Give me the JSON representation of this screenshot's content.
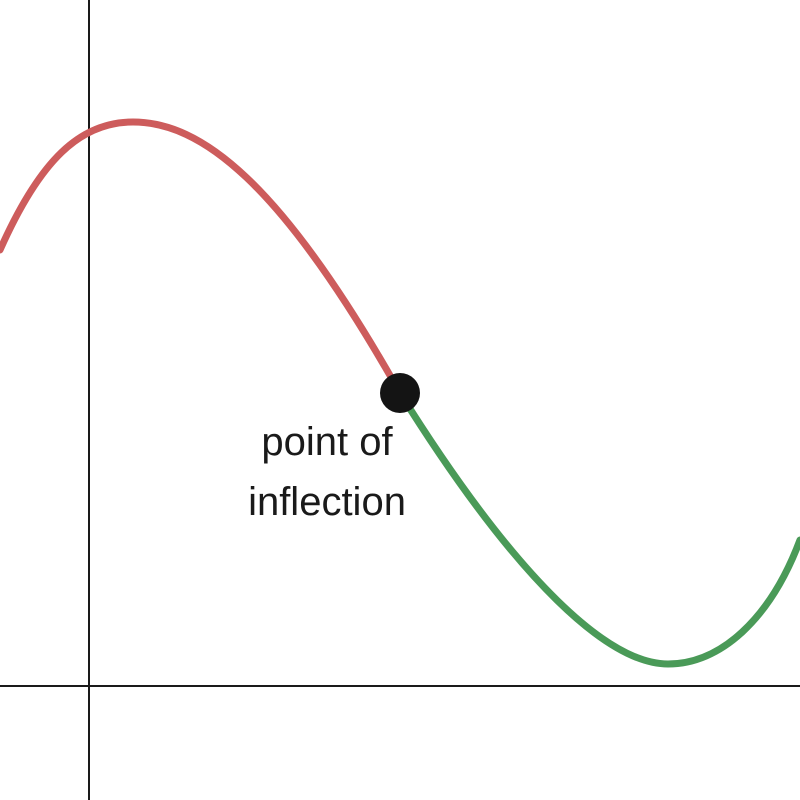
{
  "annotation": {
    "lines": [
      "point of",
      "inflection"
    ]
  },
  "colors": {
    "concave_down": "#cd5c5c",
    "concave_up": "#4a9a58",
    "point": "#141414",
    "axes": "#1a1a1a"
  }
}
